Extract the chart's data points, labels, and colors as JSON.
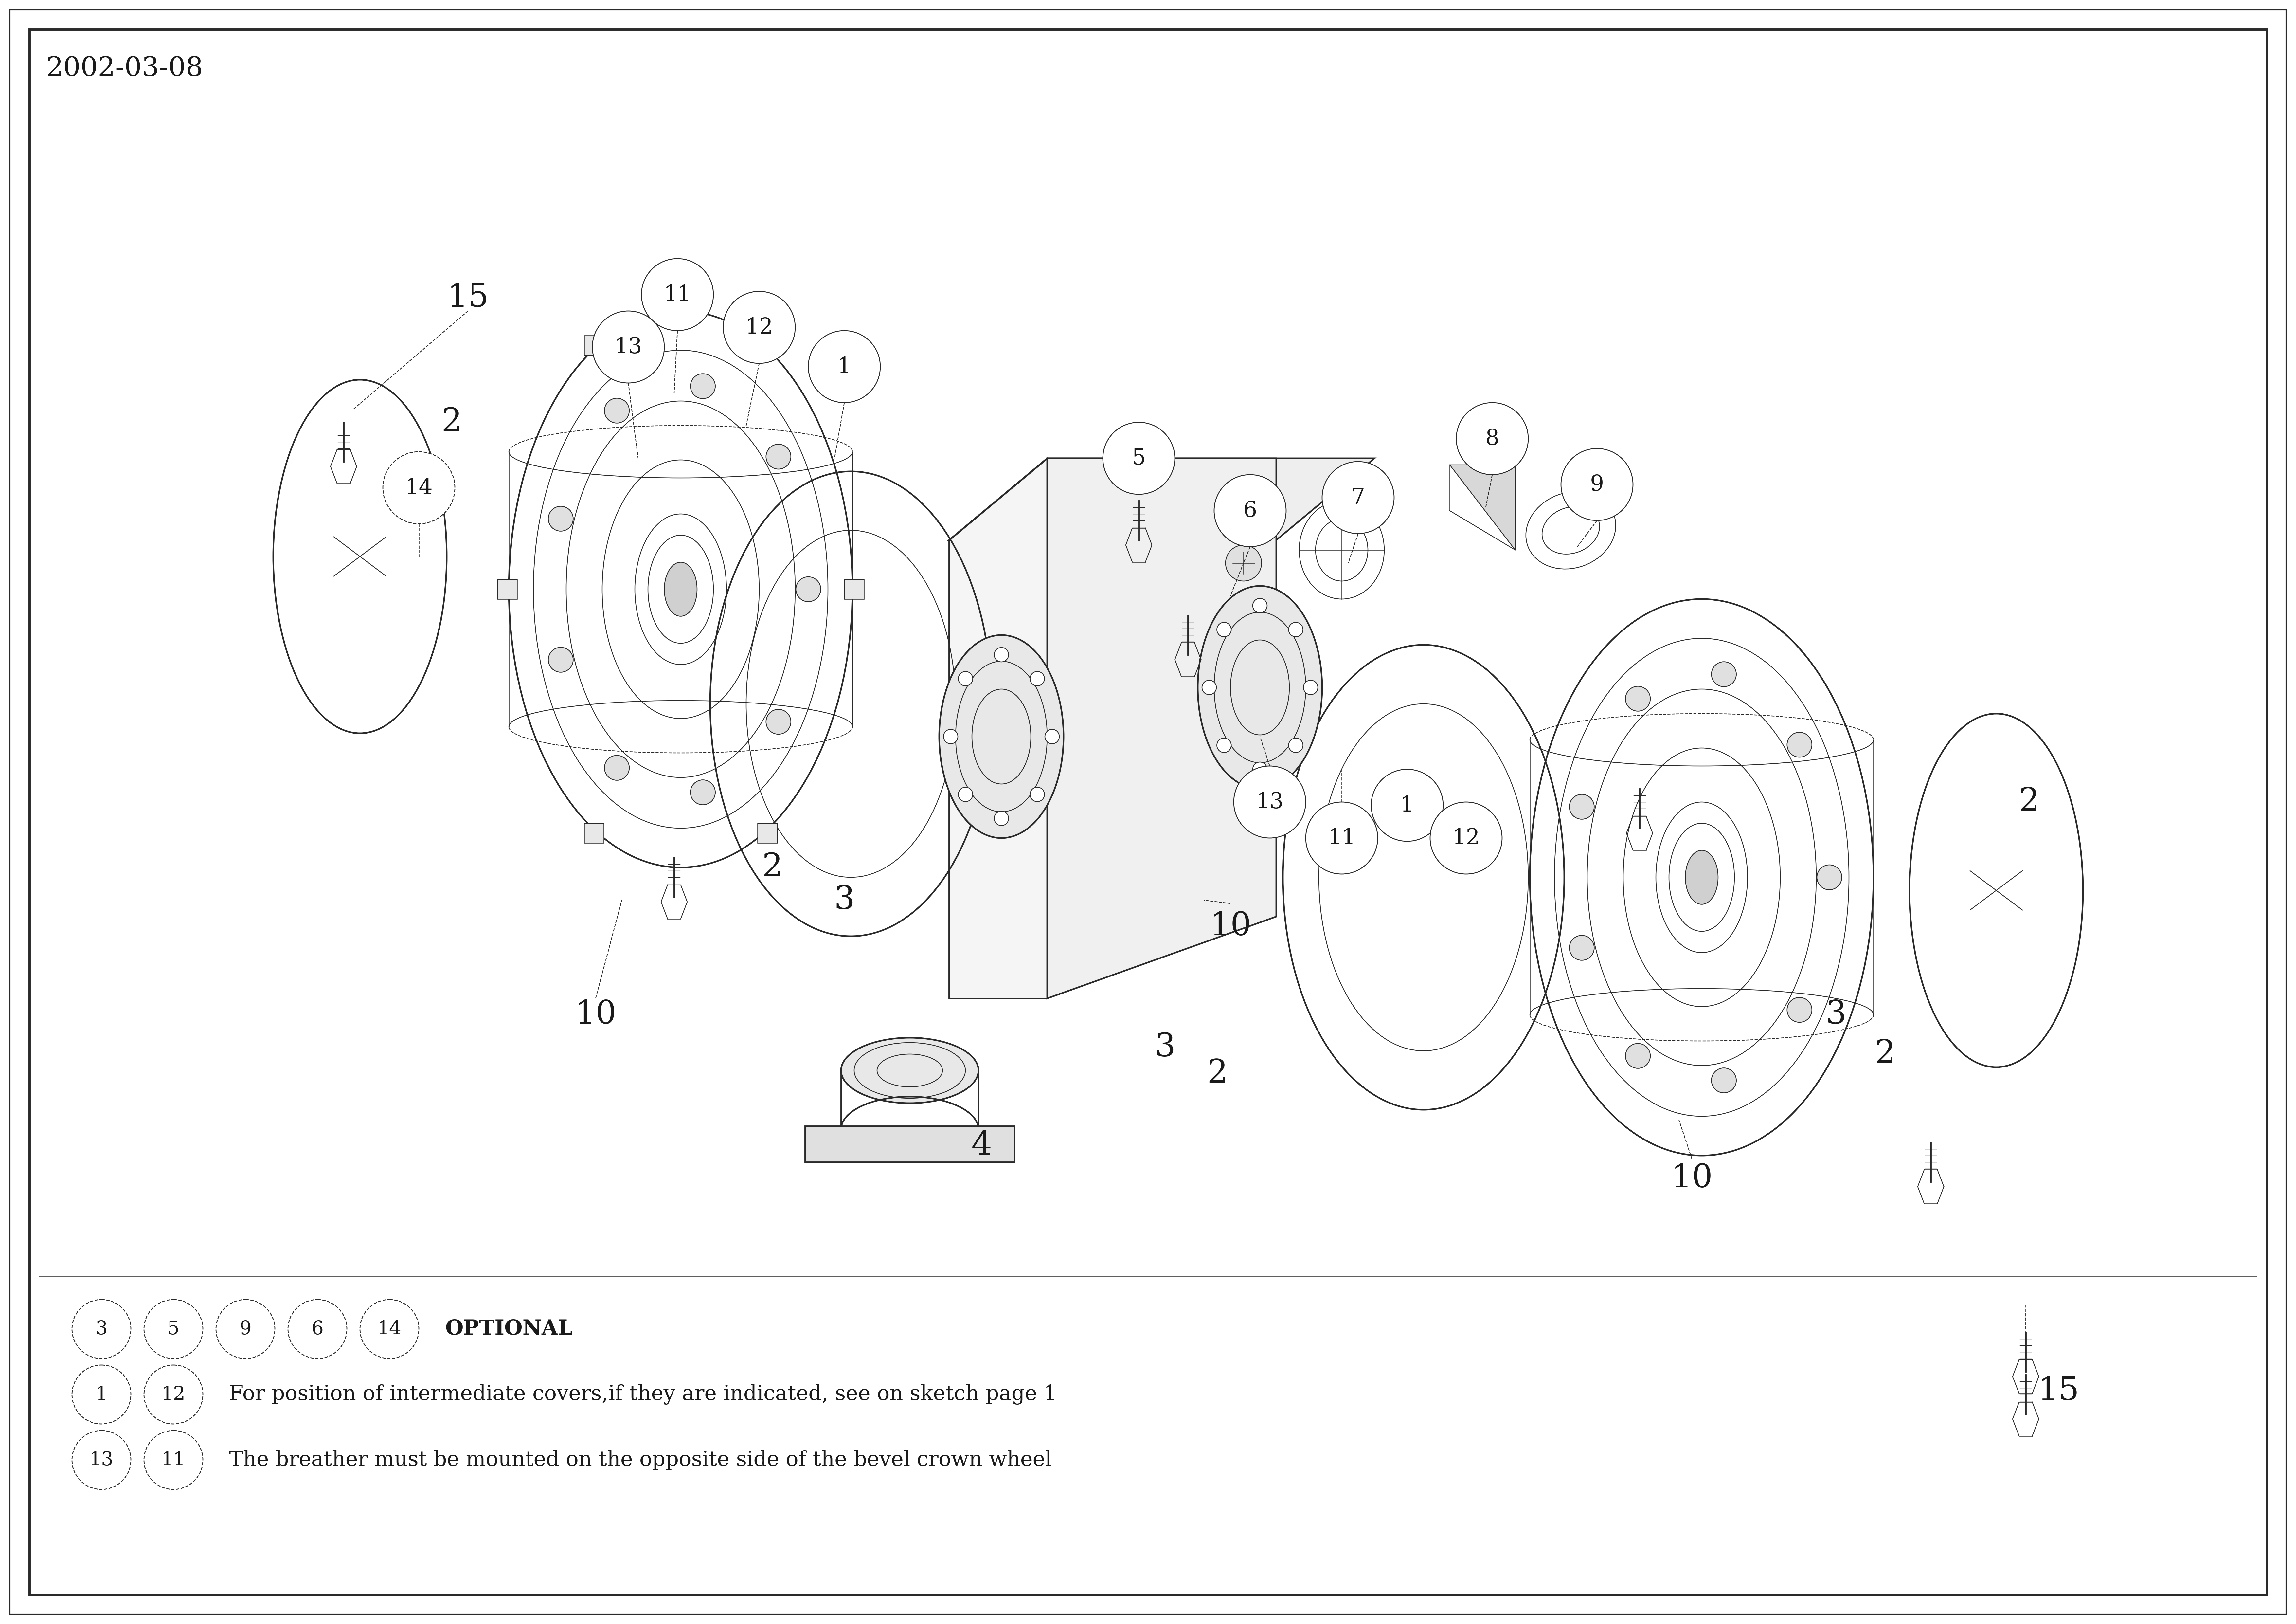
{
  "date_label": "2002-03-08",
  "background_color": "#ffffff",
  "border_color": "#1a1a1a",
  "line_color": "#2a2a2a",
  "text_color": "#1a1a1a",
  "fig_width": 70.16,
  "fig_height": 49.61,
  "dpi": 100,
  "note_rows": [
    {
      "circles": [
        "3",
        "5",
        "9",
        "6",
        "14"
      ],
      "text": "OPTIONAL",
      "bold": true
    },
    {
      "circles": [
        "1",
        "12"
      ],
      "text": "For position of intermediate covers,if they are indicated, see on sketch page 1",
      "bold": false
    },
    {
      "circles": [
        "13",
        "11"
      ],
      "text": "The breather must be mounted on the opposite side of the bevel crown wheel",
      "bold": false
    }
  ]
}
